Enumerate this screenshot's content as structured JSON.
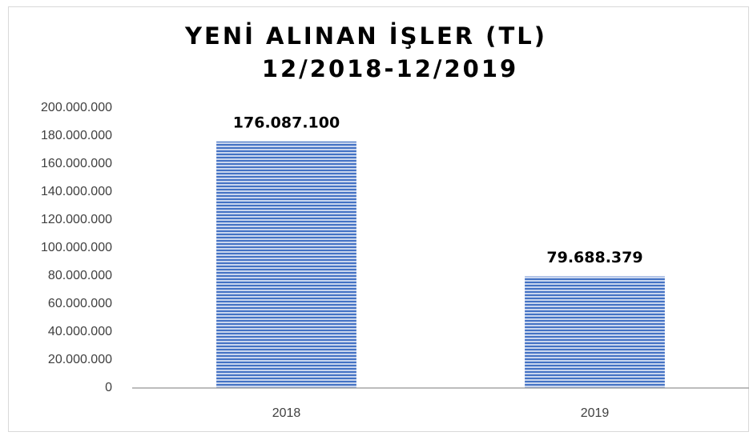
{
  "chart_data": {
    "type": "bar",
    "title": "YENİ ALINAN İŞLER (TL)",
    "subtitle": "12/2018-12/2019",
    "categories": [
      "2018",
      "2019"
    ],
    "values": [
      176087100,
      79688379
    ],
    "value_labels": [
      "176.087.100",
      "79.688.379"
    ],
    "color": "#4472c4",
    "ylim": [
      0,
      200000000
    ],
    "yticks": [
      0,
      {
        "value": 20000000,
        "label": "20.000.000"
      },
      {
        "value": 40000000,
        "label": "40.000.000"
      },
      {
        "value": 60000000,
        "label": "60.000.000"
      },
      {
        "value": 80000000,
        "label": "80.000.000"
      },
      {
        "value": 100000000,
        "label": "100.000.000"
      },
      {
        "value": 120000000,
        "label": "120.000.000"
      },
      {
        "value": 140000000,
        "label": "140.000.000"
      },
      {
        "value": 160000000,
        "label": "160.000.000"
      },
      {
        "value": 180000000,
        "label": "180.000.000"
      },
      {
        "value": 200000000,
        "label": "200.000.000"
      }
    ],
    "grid": false
  }
}
